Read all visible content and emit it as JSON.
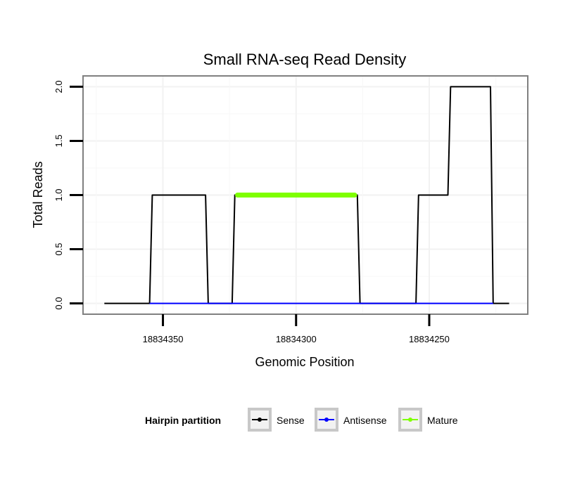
{
  "chart_data": {
    "type": "line",
    "title": "Small RNA-seq Read Density",
    "xlabel": "Genomic Position",
    "ylabel": "Total Reads",
    "xlim": [
      18834380,
      18834213
    ],
    "ylim": [
      -0.1,
      2.1
    ],
    "x_reversed": true,
    "x_ticks": [
      18834350,
      18834300,
      18834250
    ],
    "x_tick_labels": [
      "18834350",
      "18834300",
      "18834250"
    ],
    "y_ticks": [
      0,
      0.5,
      1,
      1.5,
      2
    ],
    "y_tick_labels": [
      "0.0",
      "0.5",
      "1.0",
      "1.5",
      "2.0"
    ],
    "grid": true,
    "legend_position": "bottom",
    "legend_title": "Hairpin partition",
    "series": [
      {
        "name": "Sense",
        "color": "#000000",
        "x": [
          18834372,
          18834355,
          18834354,
          18834334,
          18834333,
          18834324,
          18834323,
          18834277,
          18834276,
          18834255,
          18834254,
          18834243,
          18834242,
          18834227,
          18834226,
          18834220
        ],
        "y": [
          0,
          0,
          1,
          1,
          0,
          0,
          1,
          1,
          0,
          0,
          1,
          1,
          2,
          2,
          0,
          0
        ]
      },
      {
        "name": "Antisense",
        "color": "#0000ff",
        "x": [
          18834355,
          18834226
        ],
        "y": [
          0,
          0
        ]
      },
      {
        "name": "Mature",
        "color": "#7fff00",
        "x": [
          18834322,
          18834278
        ],
        "y": [
          1,
          1
        ]
      }
    ]
  }
}
